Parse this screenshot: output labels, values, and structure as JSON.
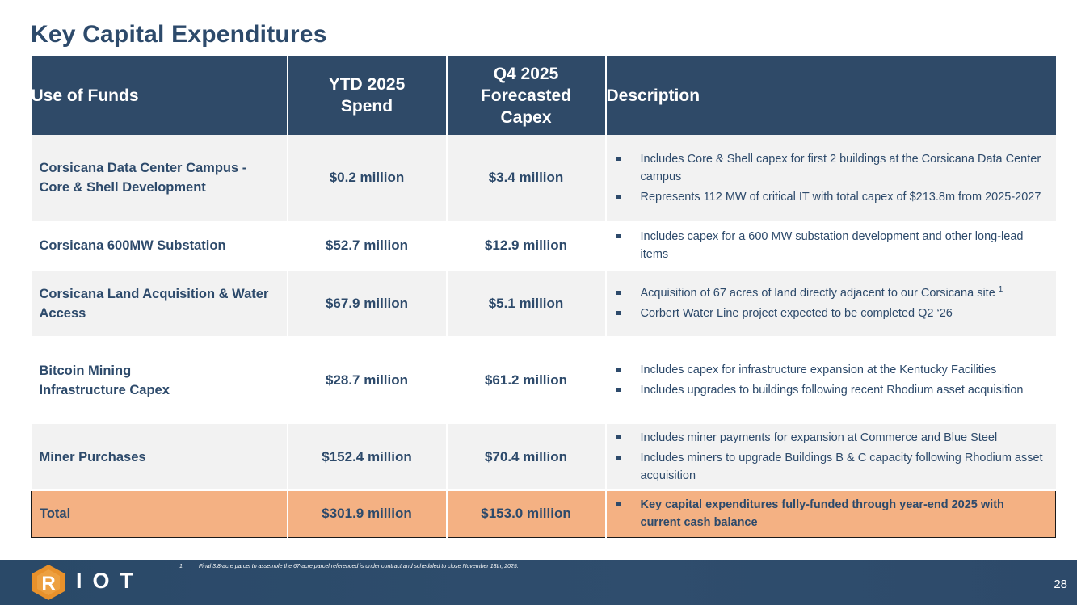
{
  "title": "Key Capital Expenditures",
  "table": {
    "headers": {
      "use": "Use of Funds",
      "ytd": "YTD 2025 Spend",
      "q4": "Q4 2025 Forecasted Capex",
      "desc": "Description"
    },
    "rows": [
      {
        "use": "Corsicana Data Center Campus - Core & Shell Development",
        "ytd": "$0.2 million",
        "q4": "$3.4 million",
        "bullets": [
          "Includes Core & Shell capex for first 2 buildings at the Corsicana Data Center campus",
          "Represents 112 MW of critical IT with total capex of $213.8m from 2025-2027"
        ]
      },
      {
        "use": "Corsicana 600MW Substation",
        "ytd": "$52.7 million",
        "q4": "$12.9 million",
        "bullets": [
          "Includes capex for a 600 MW substation development and other long-lead items"
        ]
      },
      {
        "use": "Corsicana Land Acquisition & Water Access",
        "ytd": "$67.9 million",
        "q4": "$5.1 million",
        "bullets": [
          "Acquisition of 67 acres of land directly adjacent to our Corsicana site",
          "Corbert Water Line project expected to be completed Q2 ‘26"
        ],
        "footnote_ref": "1"
      },
      {
        "use": "Bitcoin Mining Infrastructure Capex",
        "ytd": "$28.7 million",
        "q4": "$61.2 million",
        "bullets": [
          "Includes capex for infrastructure expansion at the Kentucky Facilities",
          "Includes upgrades to buildings following recent Rhodium asset acquisition"
        ]
      },
      {
        "use": "Miner Purchases",
        "ytd": "$152.4 million",
        "q4": "$70.4 million",
        "bullets": [
          "Includes miner payments for expansion at Commerce and Blue Steel",
          "Includes miners to upgrade Buildings B & C capacity following Rhodium asset acquisition"
        ]
      }
    ],
    "total": {
      "use": "Total",
      "ytd": "$301.9 million",
      "q4": "$153.0 million",
      "bullets": [
        "Key capital expenditures fully-funded through year-end 2025 with current cash balance"
      ]
    }
  },
  "footer": {
    "logo_letter": "R",
    "logo_text": "IOT",
    "footnote_number": "1.",
    "footnote_text": "Final 3.8-acre parcel to assemble the 67-acre parcel referenced is under contract and scheduled to close November 18th, 2025.",
    "page_number": "28"
  },
  "colors": {
    "header_bg": "#2f4a68",
    "text": "#2d4a6b",
    "row_shade": "#f2f2f2",
    "total_bg": "#f4b183",
    "logo_orange": "#e8912b"
  }
}
